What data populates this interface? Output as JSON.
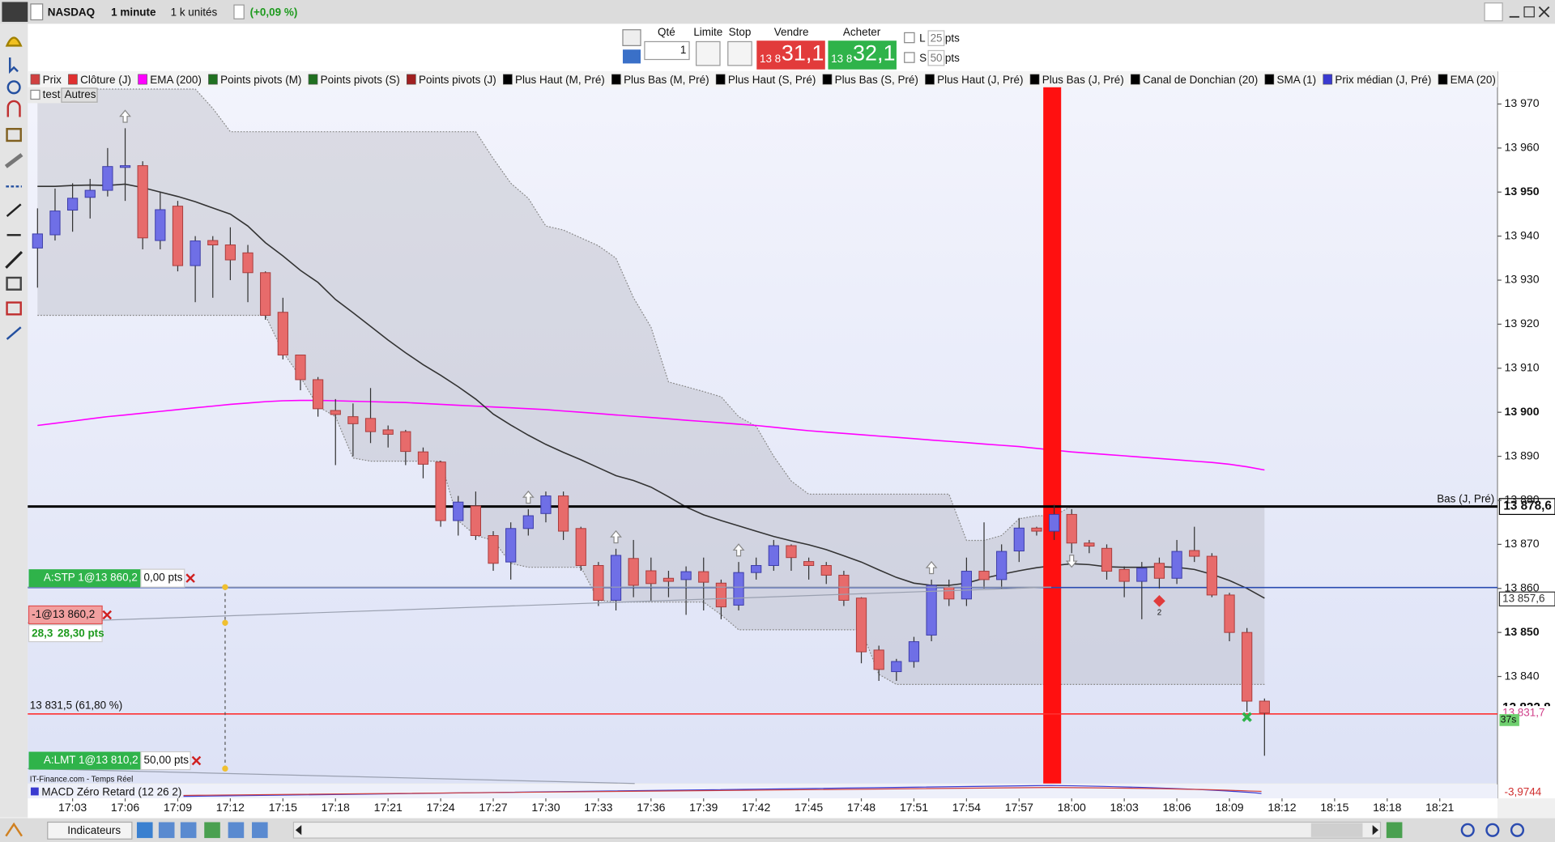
{
  "toolbar": {
    "instrument": "NASDAQ",
    "interval": "1 minute",
    "size": "1 k unités",
    "change": "(+0,09 %)"
  },
  "order_panel": {
    "qty_label": "Qté",
    "qty": "1",
    "limit": "Limite",
    "stop": "Stop",
    "sell_label": "Vendre",
    "buy_label": "Acheter",
    "sell_prefix": "13 8",
    "sell_price": "31,1",
    "buy_prefix": "13 8",
    "buy_price": "32,1",
    "l_label": "L",
    "l_value": "25",
    "l_unit": "pts",
    "s_label": "S",
    "s_value": "50",
    "s_unit": "pts"
  },
  "tabs": [
    "test",
    "Autres"
  ],
  "orders": {
    "stop": {
      "label": "A:STP 1@13 860,2",
      "pts": "0,00 pts"
    },
    "position": {
      "label": "-1@13 860,2",
      "pl": "28,3",
      "pts": "28,30 pts"
    },
    "limit": {
      "label": "A:LMT 1@13 810,2",
      "pts": "50,00 pts"
    }
  },
  "source": "IT-Finance.com - Temps Réel",
  "bottom_bar": {
    "indicators": "Indicateurs"
  },
  "chart_data": {
    "type": "candlestick",
    "legend": [
      {
        "name": "Prix",
        "color": "#d04040"
      },
      {
        "name": "Clôture (J)",
        "color": "#e03030"
      },
      {
        "name": "EMA (200)",
        "color": "#ff00ff"
      },
      {
        "name": "Points pivots (M)",
        "color": "#207020"
      },
      {
        "name": "Points pivots (S)",
        "color": "#207020"
      },
      {
        "name": "Points pivots (J)",
        "color": "#a02020"
      },
      {
        "name": "Plus Haut (M, Pré)",
        "color": "#000000"
      },
      {
        "name": "Plus Bas (M, Pré)",
        "color": "#000000"
      },
      {
        "name": "Plus Haut (S, Pré)",
        "color": "#000000"
      },
      {
        "name": "Plus Bas (S, Pré)",
        "color": "#000000"
      },
      {
        "name": "Plus Haut (J, Pré)",
        "color": "#000000"
      },
      {
        "name": "Plus Bas (J, Pré)",
        "color": "#000000"
      },
      {
        "name": "Canal de Donchian (20)",
        "color": "#000000"
      },
      {
        "name": "SMA (1)",
        "color": "#000000"
      },
      {
        "name": "Prix médian (J, Pré)",
        "color": "#3a3ad0"
      },
      {
        "name": "EMA (20)",
        "color": "#000000"
      }
    ],
    "categories": [
      null,
      null,
      "17:03",
      null,
      null,
      "17:06",
      null,
      null,
      "17:09",
      null,
      null,
      "17:12",
      null,
      null,
      "17:15",
      null,
      null,
      "17:18",
      null,
      null,
      "17:21",
      null,
      null,
      "17:24",
      null,
      null,
      "17:27",
      null,
      null,
      "17:30",
      null,
      null,
      "17:33",
      null,
      null,
      "17:36",
      null,
      null,
      "17:39",
      null,
      null,
      "17:42",
      null,
      null,
      "17:45",
      null,
      null,
      "17:48",
      null,
      null,
      "17:51",
      null,
      null,
      "17:54",
      null,
      null,
      "17:57",
      null,
      null,
      "18:00",
      null,
      null,
      "18:03",
      null,
      null,
      "18:06",
      null,
      null,
      "18:09",
      null,
      null,
      "18:12",
      null,
      null,
      "18:15",
      null,
      null,
      "18:18",
      null,
      null,
      "18:21",
      null,
      null
    ],
    "open": [
      13937.3,
      13940.3,
      13945.9,
      13948.8,
      13950.4,
      13955.6,
      13956.0,
      13939.0,
      13946.8,
      13933.3,
      13939.0,
      13938.0,
      13936.2,
      13931.7,
      13922.7,
      13913.0,
      13907.4,
      13900.4,
      13899.0,
      13898.6,
      13896.0,
      13895.6,
      13891.0,
      13888.7,
      13875.4,
      13878.7,
      13872.0,
      13866.0,
      13873.6,
      13877.0,
      13881.0,
      13873.6,
      13865.2,
      13857.3,
      13866.8,
      13864.0,
      13862.3,
      13862.0,
      13863.8,
      13861.2,
      13856.2,
      13863.6,
      13865.2,
      13869.7,
      13866.1,
      13865.2,
      13863.0,
      13857.8,
      13846.0,
      13841.1,
      13843.4,
      13849.4,
      13860.3,
      13857.6,
      13863.9,
      13862.0,
      13868.5,
      13873.7,
      13873.0,
      13876.8,
      13870.3,
      13869.1,
      13864.3,
      13861.6,
      13865.7,
      13862.3,
      13868.6,
      13867.3,
      13858.5,
      13850.0,
      13834.4,
      null,
      null,
      null,
      null,
      null,
      null,
      null,
      null,
      null,
      null,
      null,
      null
    ],
    "high": [
      13946.3,
      13950.8,
      13952.0,
      13953.0,
      13960.0,
      13964.5,
      13957.0,
      13950.0,
      13948.0,
      13940.0,
      13940.0,
      13942.0,
      13938.0,
      13932.0,
      13926.0,
      13913.0,
      13908.0,
      13903.0,
      13902.0,
      13905.5,
      13897.0,
      13896.0,
      13892.0,
      13889.0,
      13881.0,
      13882.0,
      13873.0,
      13875.0,
      13878.0,
      13882.0,
      13882.0,
      13874.0,
      13866.0,
      13869.0,
      13871.0,
      13867.0,
      13864.0,
      13865.0,
      13867.0,
      13862.0,
      13866.0,
      13867.0,
      13871.0,
      13870.0,
      13867.0,
      13866.0,
      13864.0,
      13858.0,
      13847.0,
      13844.0,
      13849.0,
      13862.0,
      13862.0,
      13867.0,
      13875.0,
      13870.0,
      13876.0,
      13874.0,
      13879.0,
      13878.0,
      13871.0,
      13870.0,
      13865.0,
      13866.0,
      13867.0,
      13871.0,
      13874.0,
      13868.0,
      13859.0,
      13851.0,
      13835.0,
      null,
      null,
      null,
      null,
      null,
      null,
      null,
      null,
      null,
      null,
      null,
      null
    ],
    "low": [
      13928.3,
      13939.0,
      13941.0,
      13944.0,
      13949.0,
      13948.0,
      13937.0,
      13937.0,
      13932.0,
      13925.0,
      13926.0,
      13930.0,
      13925.0,
      13921.0,
      13912.0,
      13905.0,
      13899.0,
      13888.0,
      13890.0,
      13893.0,
      13892.0,
      13888.0,
      13885.0,
      13874.0,
      13872.0,
      13871.0,
      13864.0,
      13862.0,
      13872.0,
      13875.0,
      13871.0,
      13864.0,
      13856.0,
      13855.0,
      13858.0,
      13857.0,
      13858.0,
      13854.0,
      13855.0,
      13853.0,
      13855.0,
      13862.0,
      13864.0,
      13864.0,
      13862.0,
      13861.0,
      13856.0,
      13843.0,
      13839.0,
      13839.0,
      13842.0,
      13848.0,
      13856.0,
      13856.0,
      13860.0,
      13860.0,
      13866.0,
      13872.0,
      13871.0,
      13868.0,
      13868.0,
      13862.0,
      13858.0,
      13853.0,
      13860.0,
      13861.0,
      13866.0,
      13858.0,
      13848.0,
      13832.0,
      13822.0,
      null,
      null,
      null,
      null,
      null,
      null,
      null,
      null,
      null,
      null,
      null,
      null
    ],
    "close": [
      13940.5,
      13945.7,
      13948.6,
      13950.4,
      13955.8,
      13956.0,
      13939.6,
      13946.0,
      13933.3,
      13938.9,
      13938.0,
      13934.6,
      13931.7,
      13922.0,
      13913.0,
      13907.4,
      13900.8,
      13899.5,
      13897.4,
      13895.6,
      13895.0,
      13891.1,
      13888.2,
      13875.4,
      13879.6,
      13872.0,
      13865.7,
      13873.6,
      13876.5,
      13881.0,
      13873.0,
      13865.2,
      13857.3,
      13867.5,
      13860.7,
      13861.1,
      13861.6,
      13863.8,
      13861.4,
      13855.8,
      13863.6,
      13865.2,
      13869.7,
      13867.0,
      13865.2,
      13863.0,
      13857.3,
      13845.6,
      13841.6,
      13843.4,
      13847.9,
      13860.7,
      13857.6,
      13863.9,
      13862.0,
      13868.4,
      13873.7,
      13873.0,
      13876.8,
      13870.3,
      13869.6,
      13863.9,
      13861.6,
      13864.6,
      13862.3,
      13868.4,
      13867.3,
      13858.5,
      13850.0,
      13834.4,
      13831.7,
      null,
      null,
      null,
      null,
      null,
      null,
      null,
      null,
      null,
      null,
      null,
      null
    ],
    "up_color": "#6f6fe6",
    "down_color": "#e76b6b",
    "ylim": [
      13815.7,
      13973.8
    ],
    "yticks": [
      {
        "value": 13840,
        "label": "13 840"
      },
      {
        "value": 13850,
        "label": "13 850"
      },
      {
        "value": 13860,
        "label": "13 860"
      },
      {
        "value": 13870,
        "label": "13 870"
      },
      {
        "value": 13880,
        "label": "13 880"
      },
      {
        "value": 13890,
        "label": "13 890"
      },
      {
        "value": 13900,
        "label": "13 900"
      },
      {
        "value": 13910,
        "label": "13 910"
      },
      {
        "value": 13920,
        "label": "13 920"
      },
      {
        "value": 13930,
        "label": "13 930"
      },
      {
        "value": 13940,
        "label": "13 940"
      },
      {
        "value": 13950,
        "label": "13 950"
      },
      {
        "value": 13960,
        "label": "13 960"
      },
      {
        "value": 13970,
        "label": "13 970"
      }
    ],
    "channel": {
      "color": "#8a8a8a",
      "upper": [
        13973.4,
        13973.4,
        13973.4,
        13973.4,
        13973.4,
        13973.4,
        13973.4,
        13973.4,
        13973.4,
        13973.4,
        13969.0,
        13963.7,
        13963.7,
        13963.7,
        13963.7,
        13963.7,
        13963.7,
        13963.7,
        13963.7,
        13963.7,
        13963.7,
        13963.7,
        13963.7,
        13963.7,
        13963.7,
        13963.7,
        13957.6,
        13952.0,
        13948.6,
        13942.3,
        13941.4,
        13939.6,
        13937.8,
        13935.0,
        13926.0,
        13919.3,
        13906.9,
        13905.8,
        13904.7,
        13903.5,
        13899.0,
        13896.8,
        13890.0,
        13884.4,
        13881.4,
        13881.4,
        13881.4,
        13881.4,
        13881.4,
        13881.4,
        13881.4,
        13881.4,
        13881.4,
        13870.9,
        13870.9,
        13872.0,
        13875.8,
        13876.5,
        13876.5,
        13878.7,
        13878.7,
        13878.7,
        13878.7,
        13878.7,
        13878.7,
        13878.7,
        13878.7,
        13878.7,
        13878.7,
        13878.7,
        13878.7,
        null,
        null,
        null,
        null,
        null,
        null,
        null,
        null,
        null,
        null,
        null,
        null
      ],
      "lower": [
        13922.0,
        13922.0,
        13922.0,
        13922.0,
        13922.0,
        13922.0,
        13922.0,
        13922.0,
        13922.0,
        13922.0,
        13922.0,
        13922.0,
        13922.0,
        13922.0,
        13913.7,
        13908.0,
        13901.3,
        13899.0,
        13889.6,
        13888.9,
        13888.9,
        13888.9,
        13888.9,
        13888.9,
        13875.4,
        13872.0,
        13870.9,
        13865.7,
        13864.8,
        13864.8,
        13864.8,
        13864.8,
        13857.3,
        13856.9,
        13856.9,
        13856.9,
        13856.9,
        13856.9,
        13856.9,
        13854.0,
        13850.6,
        13850.6,
        13850.6,
        13850.6,
        13850.6,
        13850.6,
        13850.6,
        13850.6,
        13840.5,
        13838.2,
        13838.2,
        13838.2,
        13838.2,
        13838.2,
        13838.2,
        13838.2,
        13838.2,
        13838.2,
        13838.2,
        13838.2,
        13838.2,
        13838.2,
        13838.2,
        13838.2,
        13838.2,
        13838.2,
        13838.2,
        13838.2,
        13838.2,
        13838.2,
        13838.2,
        null,
        null,
        null,
        null,
        null,
        null,
        null,
        null,
        null,
        null,
        null,
        null
      ]
    },
    "lines": [
      {
        "color": "#ff00ff",
        "values": [
          13897.0,
          13897.5,
          13898.0,
          13898.5,
          13899.0,
          13899.4,
          13899.8,
          13900.2,
          13900.6,
          13901.0,
          13901.4,
          13901.8,
          13902.1,
          13902.4,
          13902.6,
          13902.7,
          13902.7,
          13902.6,
          13902.5,
          13902.4,
          13902.3,
          13902.2,
          13902.0,
          13901.8,
          13901.6,
          13901.4,
          13901.2,
          13901.0,
          13900.8,
          13900.6,
          13900.3,
          13900.0,
          13899.7,
          13899.4,
          13899.1,
          13898.8,
          13898.5,
          13898.2,
          13897.9,
          13897.6,
          13897.3,
          13897.0,
          13896.6,
          13896.2,
          13895.8,
          13895.5,
          13895.2,
          13894.9,
          13894.6,
          13894.3,
          13894.0,
          13893.7,
          13893.4,
          13893.1,
          13892.8,
          13892.5,
          13892.2,
          13891.8,
          13891.4,
          13891.0,
          13890.7,
          13890.4,
          13890.1,
          13889.8,
          13889.5,
          13889.2,
          13888.9,
          13888.6,
          13888.2,
          13887.6,
          13886.9,
          null,
          null,
          null,
          null,
          null,
          null,
          null,
          null,
          null,
          null,
          null,
          null
        ]
      },
      {
        "color": "#333333",
        "values": [
          13951.3,
          13951.3,
          13951.5,
          13951.6,
          13951.5,
          13951.8,
          13951.0,
          13950.0,
          13949.0,
          13947.8,
          13946.4,
          13945.0,
          13942.3,
          13938.5,
          13935.5,
          13932.2,
          13929.5,
          13925.6,
          13922.6,
          13919.5,
          13916.4,
          13913.5,
          13910.8,
          13908.4,
          13905.8,
          13903.0,
          13899.6,
          13897.1,
          13894.8,
          13892.7,
          13890.9,
          13889.2,
          13887.4,
          13885.6,
          13884.5,
          13883.0,
          13880.8,
          13878.5,
          13876.7,
          13875.4,
          13874.2,
          13873.0,
          13871.8,
          13870.8,
          13869.9,
          13868.8,
          13867.4,
          13866.0,
          13864.2,
          13862.5,
          13861.2,
          13860.7,
          13860.7,
          13861.2,
          13862.3,
          13863.2,
          13864.0,
          13864.7,
          13865.2,
          13865.6,
          13865.4,
          13864.9,
          13864.8,
          13864.8,
          13864.9,
          13864.8,
          13864.3,
          13863.2,
          13861.8,
          13860.0,
          13857.8,
          null,
          null,
          null,
          null,
          null,
          null,
          null,
          null,
          null,
          null,
          null,
          null
        ]
      }
    ],
    "levels": [
      {
        "value": 13878.6,
        "color": "#000000",
        "name": "Bas (J, Pré)",
        "tag": "13 878,6"
      },
      {
        "value": 13860.2,
        "color": "#2a4bb0"
      },
      {
        "value": 13831.5,
        "color": "#ff3030",
        "name": "13 831,5 (61,80 %)"
      }
    ],
    "price_tags": [
      {
        "value": 13857.6,
        "label": "13 857,6",
        "color": "#333333"
      },
      {
        "value": 13832.8,
        "label": "13 832,8",
        "color": "#000000"
      },
      {
        "value": 13831.7,
        "label": "13 831,7",
        "color": "#d0408a"
      }
    ],
    "timer": "37s",
    "marker": "2",
    "macd": {
      "title": "MACD Zéro Retard (12 26 2)",
      "value_label": "-3,9744"
    }
  }
}
